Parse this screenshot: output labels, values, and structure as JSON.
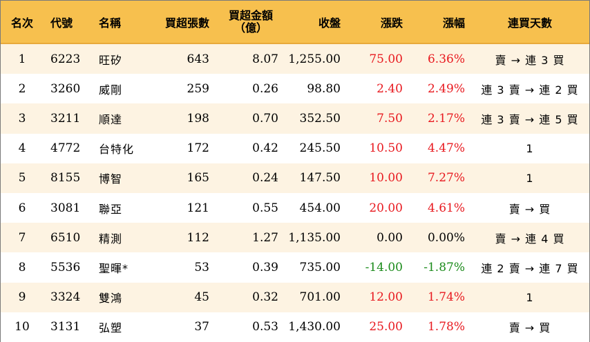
{
  "headers": {
    "rank": "名次",
    "code": "代號",
    "name": "名稱",
    "net_buy_volume": "買超張數",
    "net_buy_amount_l1": "買超金額",
    "net_buy_amount_l2": "（億）",
    "close": "收盤",
    "change": "漲跌",
    "change_pct": "漲幅",
    "consecutive_days": "連買天數"
  },
  "rows": [
    {
      "rank": "1",
      "code": "6223",
      "name": "旺矽",
      "volume": "643",
      "amount": "8.07",
      "close": "1,255.00",
      "change": "75.00",
      "pct": "6.36%",
      "trend": "up",
      "days": "賣 → 連 3 買"
    },
    {
      "rank": "2",
      "code": "3260",
      "name": "威剛",
      "volume": "259",
      "amount": "0.26",
      "close": "98.80",
      "change": "2.40",
      "pct": "2.49%",
      "trend": "up",
      "days": "連 3 賣 → 連 2 買"
    },
    {
      "rank": "3",
      "code": "3211",
      "name": "順達",
      "volume": "198",
      "amount": "0.70",
      "close": "352.50",
      "change": "7.50",
      "pct": "2.17%",
      "trend": "up",
      "days": "連 3 賣 → 連 5 買"
    },
    {
      "rank": "4",
      "code": "4772",
      "name": "台特化",
      "volume": "172",
      "amount": "0.42",
      "close": "245.50",
      "change": "10.50",
      "pct": "4.47%",
      "trend": "up",
      "days": "1"
    },
    {
      "rank": "5",
      "code": "8155",
      "name": "博智",
      "volume": "165",
      "amount": "0.24",
      "close": "147.50",
      "change": "10.00",
      "pct": "7.27%",
      "trend": "up",
      "days": "1"
    },
    {
      "rank": "6",
      "code": "3081",
      "name": "聯亞",
      "volume": "121",
      "amount": "0.55",
      "close": "454.00",
      "change": "20.00",
      "pct": "4.61%",
      "trend": "up",
      "days": "賣 → 買"
    },
    {
      "rank": "7",
      "code": "6510",
      "name": "精測",
      "volume": "112",
      "amount": "1.27",
      "close": "1,135.00",
      "change": "0.00",
      "pct": "0.00%",
      "trend": "flat",
      "days": "賣 → 連 4 買"
    },
    {
      "rank": "8",
      "code": "5536",
      "name": "聖暉*",
      "volume": "53",
      "amount": "0.39",
      "close": "735.00",
      "change": "-14.00",
      "pct": "-1.87%",
      "trend": "down",
      "days": "連 2 賣 → 連 7 買"
    },
    {
      "rank": "9",
      "code": "3324",
      "name": "雙鴻",
      "volume": "45",
      "amount": "0.32",
      "close": "701.00",
      "change": "12.00",
      "pct": "1.74%",
      "trend": "up",
      "days": "1"
    },
    {
      "rank": "10",
      "code": "3131",
      "name": "弘塑",
      "volume": "37",
      "amount": "0.53",
      "close": "1,430.00",
      "change": "25.00",
      "pct": "1.78%",
      "trend": "up",
      "days": "賣 → 買"
    }
  ],
  "colors": {
    "header_bg": "#f7c04e",
    "odd_row_bg": "#fdf3e2",
    "up": "#e8191f",
    "down": "#1a8a1a",
    "flat": "#000000"
  }
}
